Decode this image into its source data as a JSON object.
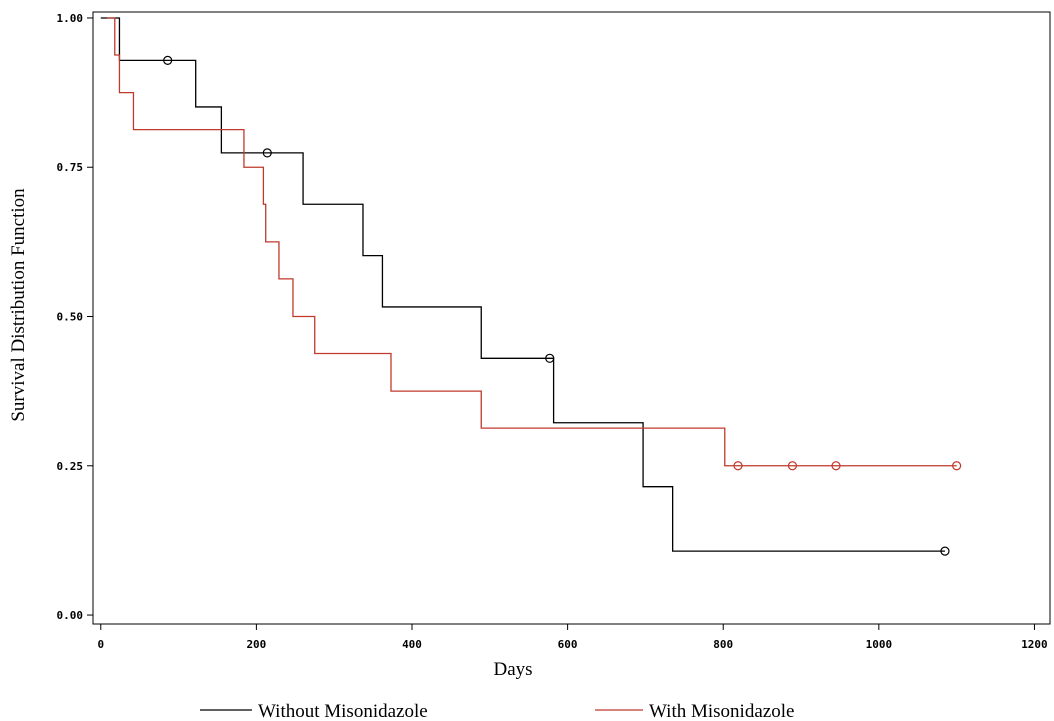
{
  "chart_data": {
    "type": "line",
    "subtype": "kaplan-meier step survival curve",
    "title": "",
    "xlabel": "Days",
    "ylabel": "Survival Distribution Function",
    "xlim": [
      -10,
      1220
    ],
    "ylim": [
      -0.015,
      1.01
    ],
    "xticks": [
      0,
      200,
      400,
      600,
      800,
      1000,
      1200
    ],
    "xtick_labels": [
      "0",
      "200",
      "400",
      "600",
      "800",
      "1000",
      "1200"
    ],
    "yticks": [
      0.0,
      0.25,
      0.5,
      0.75,
      1.0
    ],
    "ytick_labels": [
      "0.00",
      "0.25",
      "0.50",
      "0.75",
      "1.00"
    ],
    "grid": false,
    "legend_position": "bottom",
    "series": [
      {
        "name": "Without Misonidazole",
        "color": "#000000",
        "steps": [
          [
            0,
            1.0
          ],
          [
            24,
            0.929
          ],
          [
            122,
            0.851
          ],
          [
            155,
            0.774
          ],
          [
            260,
            0.688
          ],
          [
            337,
            0.602
          ],
          [
            362,
            0.516
          ],
          [
            489,
            0.43
          ],
          [
            582,
            0.322
          ],
          [
            697,
            0.215
          ],
          [
            735,
            0.107
          ],
          [
            1085,
            0.107
          ]
        ],
        "censored": [
          [
            86,
            0.929
          ],
          [
            214,
            0.774
          ],
          [
            577,
            0.43
          ],
          [
            1085,
            0.107
          ]
        ]
      },
      {
        "name": "With Misonidazole",
        "color": "#c0392b",
        "steps": [
          [
            8,
            1.0
          ],
          [
            18,
            0.938
          ],
          [
            24,
            0.875
          ],
          [
            42,
            0.813
          ],
          [
            184,
            0.75
          ],
          [
            209,
            0.688
          ],
          [
            212,
            0.625
          ],
          [
            229,
            0.563
          ],
          [
            247,
            0.5
          ],
          [
            275,
            0.438
          ],
          [
            373,
            0.375
          ],
          [
            489,
            0.313
          ],
          [
            802,
            0.25
          ],
          [
            1100,
            0.25
          ]
        ],
        "censored": [
          [
            819,
            0.25
          ],
          [
            889,
            0.25
          ],
          [
            945,
            0.25
          ],
          [
            1100,
            0.25
          ]
        ]
      }
    ]
  }
}
